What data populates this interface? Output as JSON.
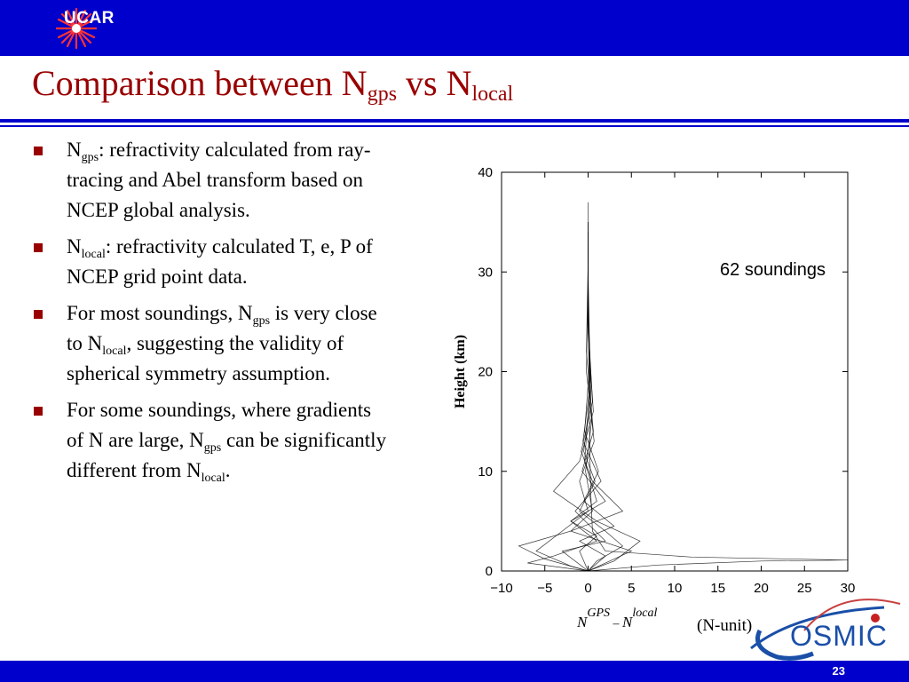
{
  "header": {
    "logo_text": "UCAR",
    "logo_icon": "star-burst-icon"
  },
  "title": {
    "prefix": "Comparison between N",
    "sub1": "gps",
    "middle": " vs N",
    "sub2": "local"
  },
  "bullets": [
    {
      "parts": [
        {
          "t": "N"
        },
        {
          "s": "gps"
        },
        {
          "t": ": refractivity calculated from ray-tracing and Abel transform based on NCEP global analysis."
        }
      ]
    },
    {
      "parts": [
        {
          "t": "N"
        },
        {
          "s": "local"
        },
        {
          "t": ": refractivity calculated T, e, P of NCEP grid point data."
        }
      ]
    },
    {
      "parts": [
        {
          "t": "For most soundings, N"
        },
        {
          "s": "gps"
        },
        {
          "t": " is very close to N"
        },
        {
          "s": "local"
        },
        {
          "t": ", suggesting the validity of spherical symmetry assumption."
        }
      ]
    },
    {
      "parts": [
        {
          "t": "For some soundings, where gradients of N are large, N"
        },
        {
          "s": "gps"
        },
        {
          "t": " can be significantly different from N"
        },
        {
          "s": "local"
        },
        {
          "t": "."
        }
      ]
    }
  ],
  "chart_data": {
    "type": "line",
    "title": "",
    "annotation": "62 soundings",
    "ylabel": "Height (km)",
    "xlabel_base1": "N",
    "xlabel_sup1": "GPS",
    "xlabel_sep": " – ",
    "xlabel_base2": "N",
    "xlabel_sup2": "local",
    "xunit": "(N-unit)",
    "xlim": [
      -10,
      30
    ],
    "ylim": [
      0,
      40
    ],
    "xticks": [
      -10,
      -5,
      0,
      5,
      10,
      15,
      20,
      25,
      30
    ],
    "xtick_labels": [
      "−10",
      "−5",
      "0",
      "5",
      "10",
      "15",
      "20",
      "25",
      "30"
    ],
    "yticks": [
      0,
      10,
      20,
      30,
      40
    ],
    "ytick_labels": [
      "0",
      "10",
      "20",
      "30",
      "40"
    ],
    "grid": false,
    "series_count": 62,
    "series": [
      {
        "values_xy": [
          [
            0,
            0
          ],
          [
            8,
            0.6
          ],
          [
            20,
            1.0
          ],
          [
            30,
            1.1
          ],
          [
            12,
            1.4
          ],
          [
            2,
            2
          ],
          [
            0.5,
            4
          ],
          [
            0.3,
            8
          ],
          [
            0.2,
            12
          ],
          [
            0.1,
            20
          ],
          [
            0,
            30
          ],
          [
            0,
            35
          ]
        ]
      },
      {
        "values_xy": [
          [
            0,
            0
          ],
          [
            -5,
            1.2
          ],
          [
            -8,
            2.5
          ],
          [
            -2,
            4
          ],
          [
            0.5,
            6
          ],
          [
            -0.3,
            10
          ],
          [
            0.4,
            15
          ],
          [
            0,
            25
          ],
          [
            0,
            34
          ]
        ]
      },
      {
        "values_xy": [
          [
            0,
            0
          ],
          [
            3,
            1
          ],
          [
            6,
            3
          ],
          [
            1,
            5
          ],
          [
            -4,
            8
          ],
          [
            -1,
            11
          ],
          [
            0.6,
            16
          ],
          [
            0,
            24
          ],
          [
            0,
            33
          ]
        ]
      },
      {
        "values_xy": [
          [
            0,
            0
          ],
          [
            -3,
            2
          ],
          [
            2,
            3
          ],
          [
            -1.5,
            6
          ],
          [
            1.5,
            9
          ],
          [
            -0.6,
            13
          ],
          [
            0.3,
            19
          ],
          [
            0,
            27
          ],
          [
            0,
            37
          ]
        ]
      },
      {
        "values_xy": [
          [
            0,
            0
          ],
          [
            5,
            2
          ],
          [
            -2,
            4
          ],
          [
            4,
            6
          ],
          [
            0.5,
            9
          ],
          [
            -0.8,
            12
          ],
          [
            0.5,
            17
          ],
          [
            0,
            25
          ],
          [
            0,
            34
          ]
        ]
      },
      {
        "values_xy": [
          [
            0,
            0
          ],
          [
            -7,
            0.8
          ],
          [
            -4,
            1.5
          ],
          [
            1,
            3
          ],
          [
            -2,
            5
          ],
          [
            1,
            7
          ],
          [
            -0.4,
            11
          ],
          [
            0.2,
            18
          ],
          [
            0,
            28
          ],
          [
            0,
            35
          ]
        ]
      },
      {
        "values_xy": [
          [
            0,
            0
          ],
          [
            2,
            1.5
          ],
          [
            -1,
            3
          ],
          [
            3,
            4.5
          ],
          [
            -0.5,
            7
          ],
          [
            1.2,
            10
          ],
          [
            -0.4,
            14
          ],
          [
            0.2,
            21
          ],
          [
            0,
            30
          ]
        ]
      },
      {
        "values_xy": [
          [
            0,
            0
          ],
          [
            -2,
            0.5
          ],
          [
            -6,
            2
          ],
          [
            -3,
            4
          ],
          [
            0,
            6
          ],
          [
            -1,
            9
          ],
          [
            0.7,
            13
          ],
          [
            -0.2,
            20
          ],
          [
            0,
            29
          ]
        ]
      },
      {
        "values_xy": [
          [
            0,
            0
          ],
          [
            1,
            1
          ],
          [
            4,
            2.5
          ],
          [
            2,
            4
          ],
          [
            -1,
            6
          ],
          [
            0.8,
            9
          ],
          [
            -0.5,
            12
          ],
          [
            0.3,
            18
          ],
          [
            0,
            26
          ],
          [
            0,
            33
          ]
        ]
      },
      {
        "values_xy": [
          [
            0,
            0
          ],
          [
            -1,
            2
          ],
          [
            1,
            3.5
          ],
          [
            -2,
            5
          ],
          [
            2,
            7
          ],
          [
            -0.7,
            10
          ],
          [
            0.6,
            14
          ],
          [
            -0.2,
            22
          ],
          [
            0,
            31
          ]
        ]
      }
    ]
  },
  "footer": {
    "page": "23",
    "cosmic_text": "OSMIC",
    "cosmic_icon": "cosmic-orbit-logo-icon"
  },
  "colors": {
    "bar_blue": "#0000cc",
    "title_red": "#990000",
    "bullet_red": "#990000",
    "series": "#000000"
  }
}
